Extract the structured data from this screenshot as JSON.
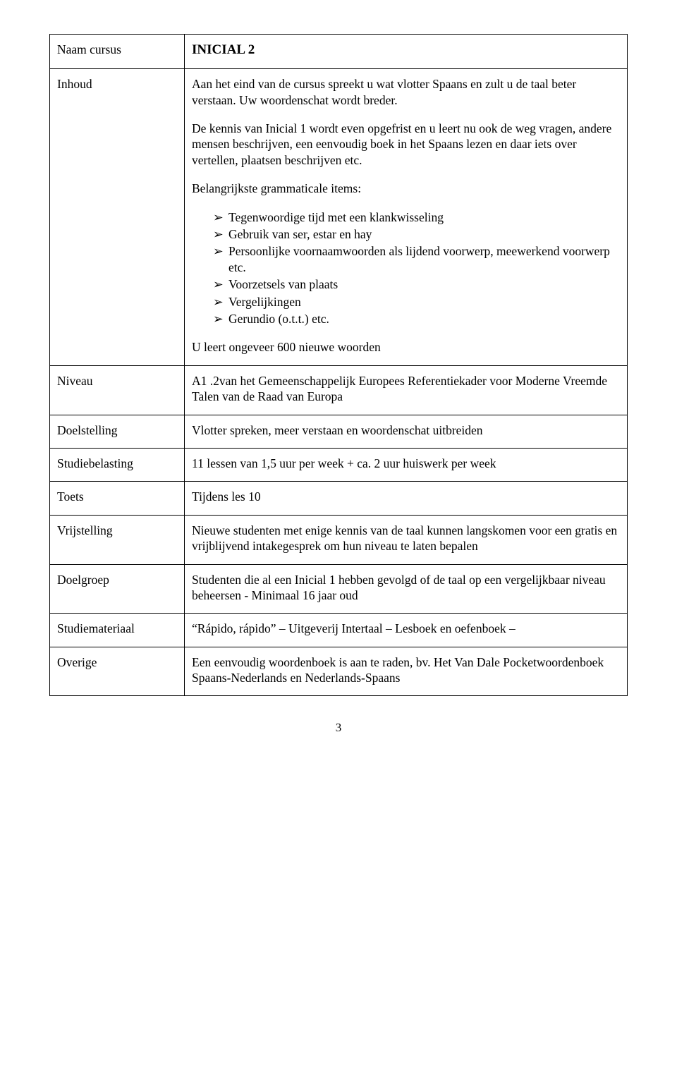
{
  "labels": {
    "naam_cursus": "Naam cursus",
    "inhoud": "Inhoud",
    "niveau": "Niveau",
    "doelstelling": "Doelstelling",
    "studiebelasting": "Studiebelasting",
    "toets": "Toets",
    "vrijstelling": "Vrijstelling",
    "doelgroep": "Doelgroep",
    "studiemateriaal": "Studiemateriaal",
    "overige": "Overige"
  },
  "title": "INICIAL 2",
  "inhoud": {
    "p1": "Aan het eind van de cursus spreekt u wat vlotter Spaans en zult u de taal beter verstaan. Uw woordenschat wordt breder.",
    "p2": "De kennis van Inicial 1 wordt even opgefrist en u leert nu ook de weg vragen, andere mensen beschrijven, een eenvoudig boek in het Spaans lezen en daar iets over vertellen, plaatsen beschrijven etc.",
    "p3": "Belangrijkste grammaticale items:",
    "bullets": [
      "Tegenwoordige tijd met een klankwisseling",
      "Gebruik van ser, estar en hay",
      "Persoonlijke voornaamwoorden als lijdend voorwerp, meewerkend voorwerp etc.",
      "Voorzetsels van plaats",
      "Vergelijkingen",
      "Gerundio (o.t.t.) etc."
    ],
    "p4": "U leert ongeveer 600 nieuwe woorden"
  },
  "niveau": "A1 .2van het Gemeenschappelijk Europees Referentiekader voor Moderne Vreemde Talen van de Raad van Europa",
  "doelstelling": "Vlotter spreken, meer verstaan en woordenschat uitbreiden",
  "studiebelasting": "11 lessen van 1,5 uur per week + ca. 2 uur huiswerk per week",
  "toets": "Tijdens les 10",
  "vrijstelling": "Nieuwe studenten met enige kennis van de taal kunnen langskomen voor een gratis en vrijblijvend intakegesprek om hun niveau te laten bepalen",
  "doelgroep": "Studenten die al een Inicial 1 hebben gevolgd of de taal op een vergelijkbaar niveau beheersen - Minimaal 16 jaar oud",
  "studiemateriaal": "“Rápido, rápido” – Uitgeverij Intertaal – Lesboek en oefenboek –",
  "overige": "Een eenvoudig woordenboek is aan te raden, bv. Het Van Dale Pocketwoordenboek Spaans-Nederlands en Nederlands-Spaans",
  "bullet_glyph": "➢",
  "page_number": "3"
}
